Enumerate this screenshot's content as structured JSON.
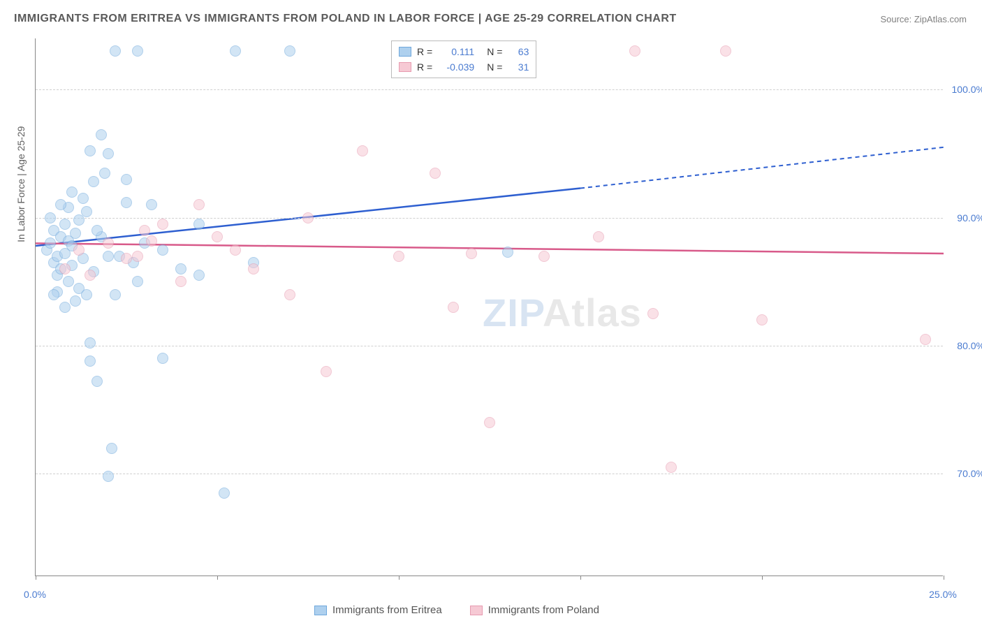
{
  "title": "IMMIGRANTS FROM ERITREA VS IMMIGRANTS FROM POLAND IN LABOR FORCE | AGE 25-29 CORRELATION CHART",
  "source": "Source: ZipAtlas.com",
  "ylabel": "In Labor Force | Age 25-29",
  "watermark_a": "ZIP",
  "watermark_b": "Atlas",
  "chart": {
    "type": "scatter",
    "background_color": "#ffffff",
    "grid_color": "#d0d0d0",
    "axis_color": "#888888",
    "xlim": [
      0,
      25
    ],
    "ylim": [
      62,
      104
    ],
    "xtick_positions": [
      0,
      5,
      10,
      15,
      20,
      25
    ],
    "xtick_labels": [
      "0.0%",
      "",
      "",
      "",
      "",
      "25.0%"
    ],
    "ytick_positions": [
      70,
      80,
      90,
      100
    ],
    "ytick_labels": [
      "70.0%",
      "80.0%",
      "90.0%",
      "100.0%"
    ],
    "tick_fontsize": 14,
    "tick_color": "#4a7bd0",
    "label_fontsize": 14,
    "label_color": "#606060",
    "title_fontsize": 16,
    "title_color": "#5a5a5a",
    "point_radius": 8,
    "point_opacity": 0.55,
    "series": [
      {
        "name": "Immigrants from Eritrea",
        "fill_color": "#aed0ee",
        "stroke_color": "#6fa8dc",
        "trend_color": "#2e5fd0",
        "r_value": "0.111",
        "n_value": "63",
        "trend": {
          "x1": 0,
          "y1": 87.8,
          "x2_solid": 15,
          "y2_solid": 92.3,
          "x2_dash": 25,
          "y2_dash": 95.5
        },
        "points": [
          [
            0.3,
            87.5
          ],
          [
            0.4,
            88.0
          ],
          [
            0.5,
            86.5
          ],
          [
            0.5,
            89.0
          ],
          [
            0.6,
            87.0
          ],
          [
            0.6,
            85.5
          ],
          [
            0.7,
            88.5
          ],
          [
            0.7,
            86.0
          ],
          [
            0.8,
            87.2
          ],
          [
            0.8,
            89.5
          ],
          [
            0.9,
            88.2
          ],
          [
            0.9,
            85.0
          ],
          [
            1.0,
            87.8
          ],
          [
            1.0,
            86.3
          ],
          [
            1.1,
            88.8
          ],
          [
            1.2,
            84.5
          ],
          [
            1.2,
            89.8
          ],
          [
            1.3,
            86.8
          ],
          [
            1.4,
            90.5
          ],
          [
            1.5,
            80.2
          ],
          [
            1.5,
            78.8
          ],
          [
            1.5,
            95.2
          ],
          [
            1.6,
            92.8
          ],
          [
            1.7,
            77.2
          ],
          [
            1.8,
            96.5
          ],
          [
            1.9,
            93.5
          ],
          [
            2.0,
            69.8
          ],
          [
            2.1,
            72.0
          ],
          [
            2.2,
            103.0
          ],
          [
            2.3,
            87.0
          ],
          [
            2.5,
            91.2
          ],
          [
            2.7,
            86.5
          ],
          [
            2.8,
            103.0
          ],
          [
            3.0,
            88.0
          ],
          [
            3.2,
            91.0
          ],
          [
            3.5,
            79.0
          ],
          [
            4.0,
            86.0
          ],
          [
            4.5,
            89.5
          ],
          [
            5.2,
            68.5
          ],
          [
            5.5,
            103.0
          ],
          [
            6.0,
            86.5
          ],
          [
            7.0,
            103.0
          ],
          [
            13.0,
            87.3
          ],
          [
            0.6,
            84.2
          ],
          [
            0.9,
            90.8
          ],
          [
            1.1,
            83.5
          ],
          [
            1.3,
            91.5
          ],
          [
            1.6,
            85.8
          ],
          [
            1.8,
            88.5
          ],
          [
            2.0,
            95.0
          ],
          [
            2.2,
            84.0
          ],
          [
            2.5,
            93.0
          ],
          [
            0.4,
            90.0
          ],
          [
            0.5,
            84.0
          ],
          [
            0.7,
            91.0
          ],
          [
            0.8,
            83.0
          ],
          [
            1.0,
            92.0
          ],
          [
            1.4,
            84.0
          ],
          [
            1.7,
            89.0
          ],
          [
            2.0,
            87.0
          ],
          [
            2.8,
            85.0
          ],
          [
            3.5,
            87.5
          ],
          [
            4.5,
            85.5
          ]
        ]
      },
      {
        "name": "Immigrants from Poland",
        "fill_color": "#f6c9d4",
        "stroke_color": "#e79bb0",
        "trend_color": "#d85a8a",
        "r_value": "-0.039",
        "n_value": "31",
        "trend": {
          "x1": 0,
          "y1": 88.0,
          "x2_solid": 25,
          "y2_solid": 87.2,
          "x2_dash": 25,
          "y2_dash": 87.2
        },
        "points": [
          [
            0.8,
            86.0
          ],
          [
            1.2,
            87.5
          ],
          [
            1.5,
            85.5
          ],
          [
            2.0,
            88.0
          ],
          [
            2.5,
            86.8
          ],
          [
            3.0,
            89.0
          ],
          [
            3.2,
            88.2
          ],
          [
            3.5,
            89.5
          ],
          [
            4.0,
            85.0
          ],
          [
            4.5,
            91.0
          ],
          [
            5.0,
            88.5
          ],
          [
            6.0,
            86.0
          ],
          [
            7.0,
            84.0
          ],
          [
            7.5,
            90.0
          ],
          [
            8.0,
            78.0
          ],
          [
            9.0,
            95.2
          ],
          [
            10.0,
            87.0
          ],
          [
            11.0,
            93.5
          ],
          [
            11.5,
            83.0
          ],
          [
            12.0,
            87.2
          ],
          [
            12.5,
            74.0
          ],
          [
            14.0,
            87.0
          ],
          [
            15.5,
            88.5
          ],
          [
            16.5,
            103.0
          ],
          [
            17.0,
            82.5
          ],
          [
            17.5,
            70.5
          ],
          [
            19.0,
            103.0
          ],
          [
            20.0,
            82.0
          ],
          [
            24.5,
            80.5
          ],
          [
            2.8,
            87.0
          ],
          [
            5.5,
            87.5
          ]
        ]
      }
    ]
  },
  "legend_top": {
    "r_label": "R =",
    "n_label": "N ="
  },
  "legend_bottom": {
    "items": [
      "Immigrants from Eritrea",
      "Immigrants from Poland"
    ]
  }
}
